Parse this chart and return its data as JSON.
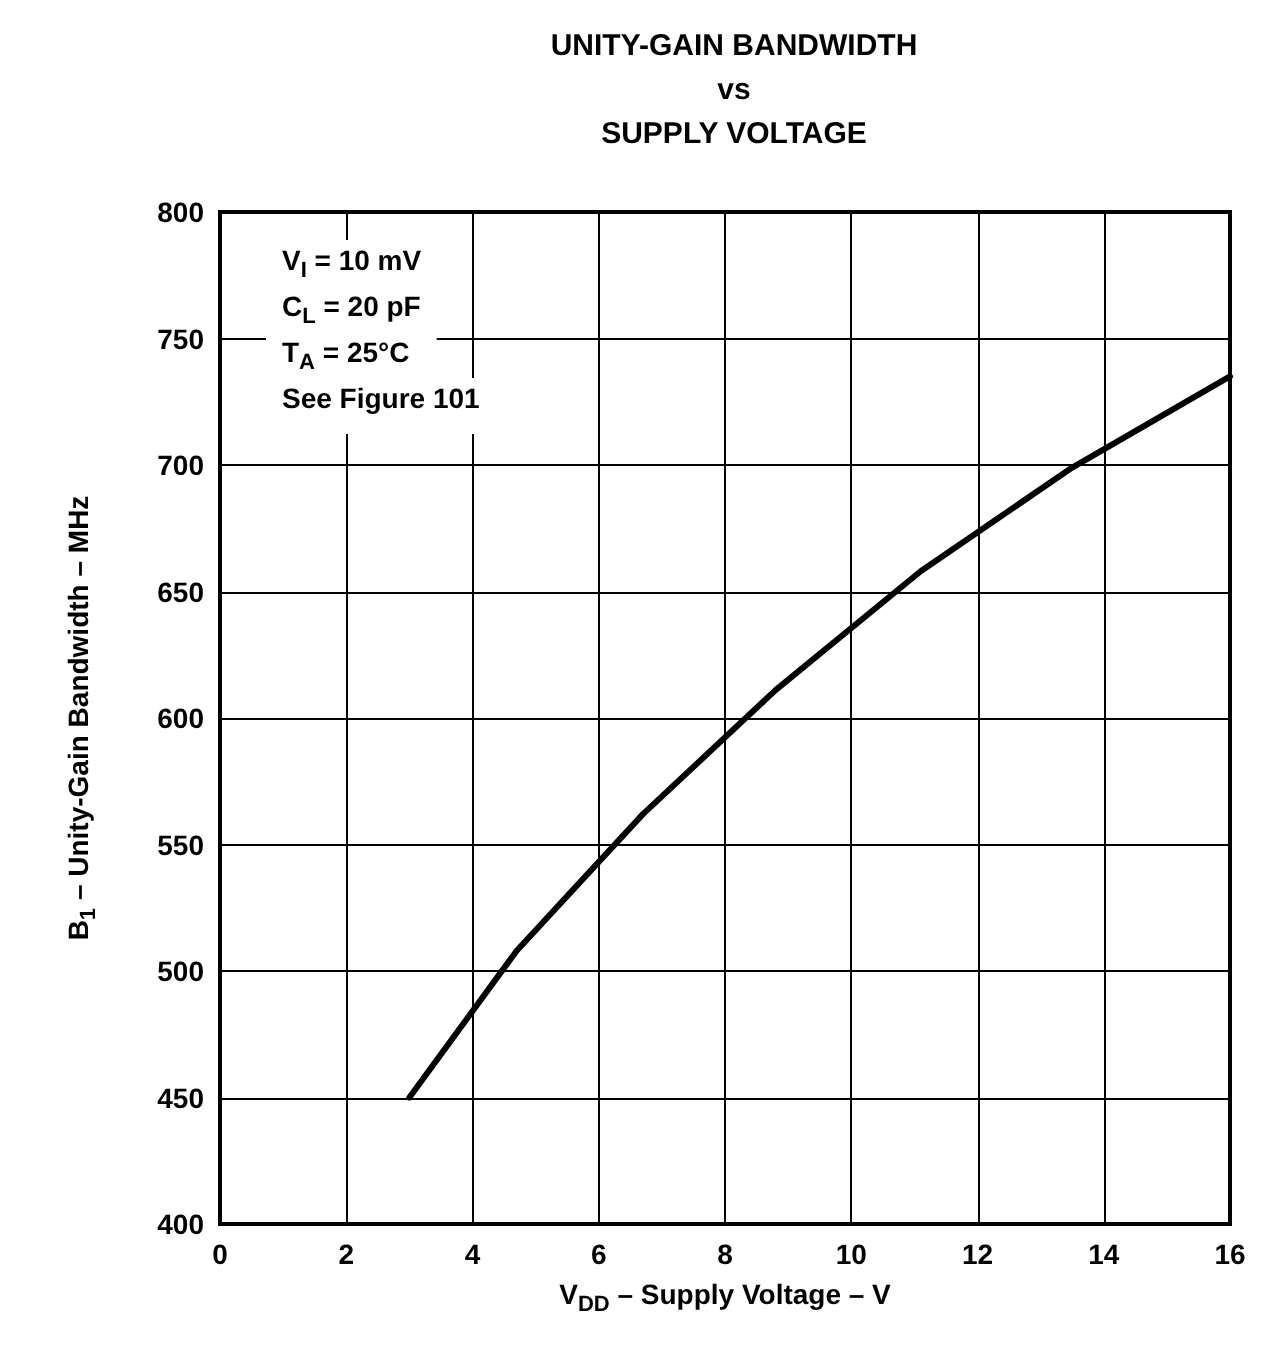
{
  "chart_data": {
    "type": "line",
    "title": "UNITY-GAIN BANDWIDTH\nvs\nSUPPLY VOLTAGE",
    "xlabel": "V$_{DD}$ – Supply Voltage – V",
    "ylabel": "B$_{1}$ – Unity-Gain Bandwidth – MHz",
    "annotations": [
      "V$_{I}$ = 10 mV",
      "C$_{L}$ = 20 pF",
      "T$_{A}$ = 25°C",
      "See Figure 101"
    ],
    "x": [
      3,
      4.7,
      6.7,
      8.8,
      11.1,
      13.5,
      16
    ],
    "series": [
      {
        "color": "#000000",
        "values": [
          450,
          508,
          562,
          611,
          658,
          699,
          735
        ]
      }
    ],
    "xlim": [
      0,
      16
    ],
    "xticks": [
      0,
      2,
      4,
      6,
      8,
      10,
      12,
      14,
      16
    ],
    "ylim": [
      400,
      800
    ],
    "yticks": [
      400,
      450,
      500,
      550,
      600,
      650,
      700,
      750,
      800
    ],
    "grid": true,
    "marker": "none",
    "line_style": "solid"
  }
}
